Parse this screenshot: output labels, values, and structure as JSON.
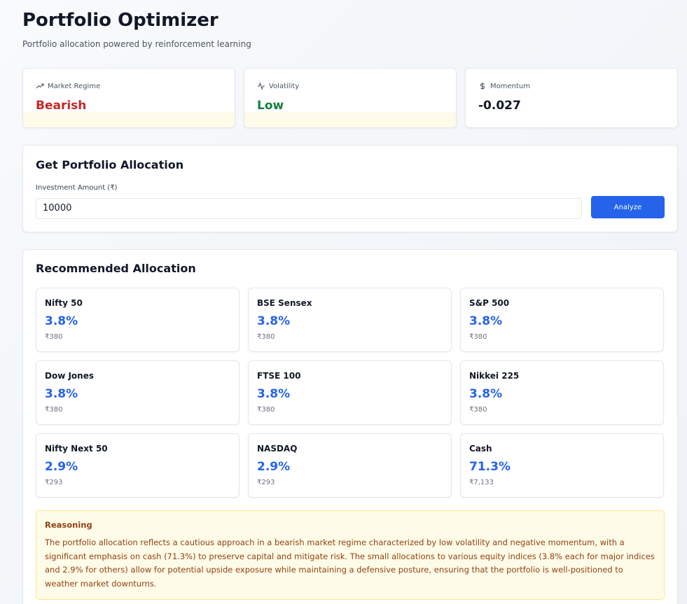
{
  "header": {
    "title": "Portfolio Optimizer",
    "subtitle": "Portfolio allocation powered by reinforcement learning"
  },
  "metrics": [
    {
      "label": "Market Regime",
      "value": "Bearish"
    },
    {
      "label": "Volatility",
      "value": "Low"
    },
    {
      "label": "Momentum",
      "value": "-0.027"
    }
  ],
  "form": {
    "title": "Get Portfolio Allocation",
    "input_label": "Investment Amount (₹)",
    "input_value": "10000",
    "button": "Analyze"
  },
  "allocation": {
    "title": "Recommended Allocation",
    "items": [
      {
        "name": "Nifty 50",
        "percent": "3.8%",
        "amount": "₹380"
      },
      {
        "name": "BSE Sensex",
        "percent": "3.8%",
        "amount": "₹380"
      },
      {
        "name": "S&P 500",
        "percent": "3.8%",
        "amount": "₹380"
      },
      {
        "name": "Dow Jones",
        "percent": "3.8%",
        "amount": "₹380"
      },
      {
        "name": "FTSE 100",
        "percent": "3.8%",
        "amount": "₹380"
      },
      {
        "name": "Nikkei 225",
        "percent": "3.8%",
        "amount": "₹380"
      },
      {
        "name": "Nifty Next 50",
        "percent": "2.9%",
        "amount": "₹293"
      },
      {
        "name": "NASDAQ",
        "percent": "2.9%",
        "amount": "₹293"
      },
      {
        "name": "Cash",
        "percent": "71.3%",
        "amount": "₹7,133"
      }
    ]
  },
  "reasoning": {
    "title": "Reasoning",
    "text": "The portfolio allocation reflects a cautious approach in a bearish market regime characterized by low volatility and negative momentum, with a significant emphasis on cash (71.3%) to preserve capital and mitigate risk. The small allocations to various equity indices (3.8% each for major indices and 2.9% for others) allow for potential upside exposure while maintaining a defensive posture, ensuring that the portfolio is well-positioned to weather market downturns."
  }
}
